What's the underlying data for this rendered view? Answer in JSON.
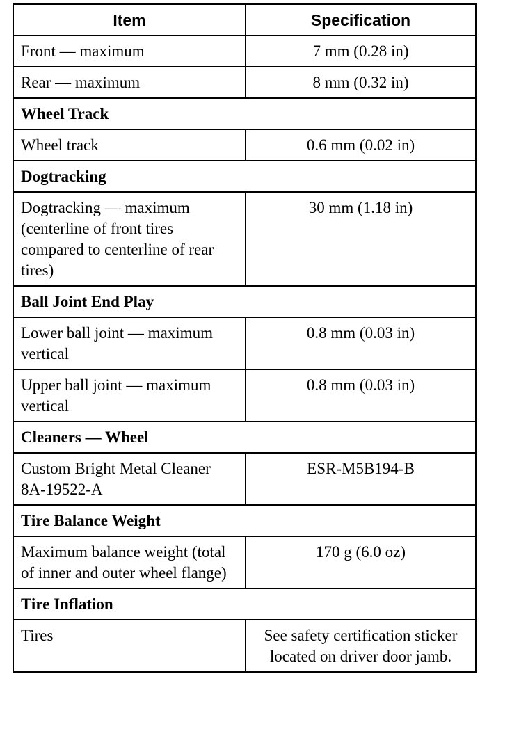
{
  "headers": {
    "item": "Item",
    "spec": "Specification"
  },
  "rows": [
    {
      "type": "data",
      "item": "Front — maximum",
      "spec": "7 mm (0.28 in)"
    },
    {
      "type": "data",
      "item": "Rear — maximum",
      "spec": "8 mm (0.32 in)"
    },
    {
      "type": "section",
      "title": "Wheel Track"
    },
    {
      "type": "data",
      "item": "Wheel track",
      "spec": "0.6 mm (0.02 in)"
    },
    {
      "type": "section",
      "title": "Dogtracking"
    },
    {
      "type": "data",
      "item": "Dogtracking — maximum (centerline of front tires compared to centerline of rear tires)",
      "spec": "30 mm (1.18 in)"
    },
    {
      "type": "section",
      "title": "Ball Joint End Play"
    },
    {
      "type": "data",
      "item": "Lower ball joint — maximum vertical",
      "spec": "0.8 mm (0.03 in)"
    },
    {
      "type": "data",
      "item": "Upper ball joint — maximum vertical",
      "spec": "0.8 mm (0.03 in)"
    },
    {
      "type": "section",
      "title": "Cleaners — Wheel"
    },
    {
      "type": "data",
      "item": "Custom Bright Metal Cleaner 8A-19522-A",
      "spec": "ESR-M5B194-B"
    },
    {
      "type": "section",
      "title": "Tire Balance Weight"
    },
    {
      "type": "data",
      "item": "Maximum balance weight (total of inner and outer wheel flange)",
      "spec": "170 g (6.0 oz)"
    },
    {
      "type": "section",
      "title": "Tire Inflation"
    },
    {
      "type": "data",
      "item": "Tires",
      "spec": "See safety certification sticker located on driver door jamb."
    }
  ]
}
